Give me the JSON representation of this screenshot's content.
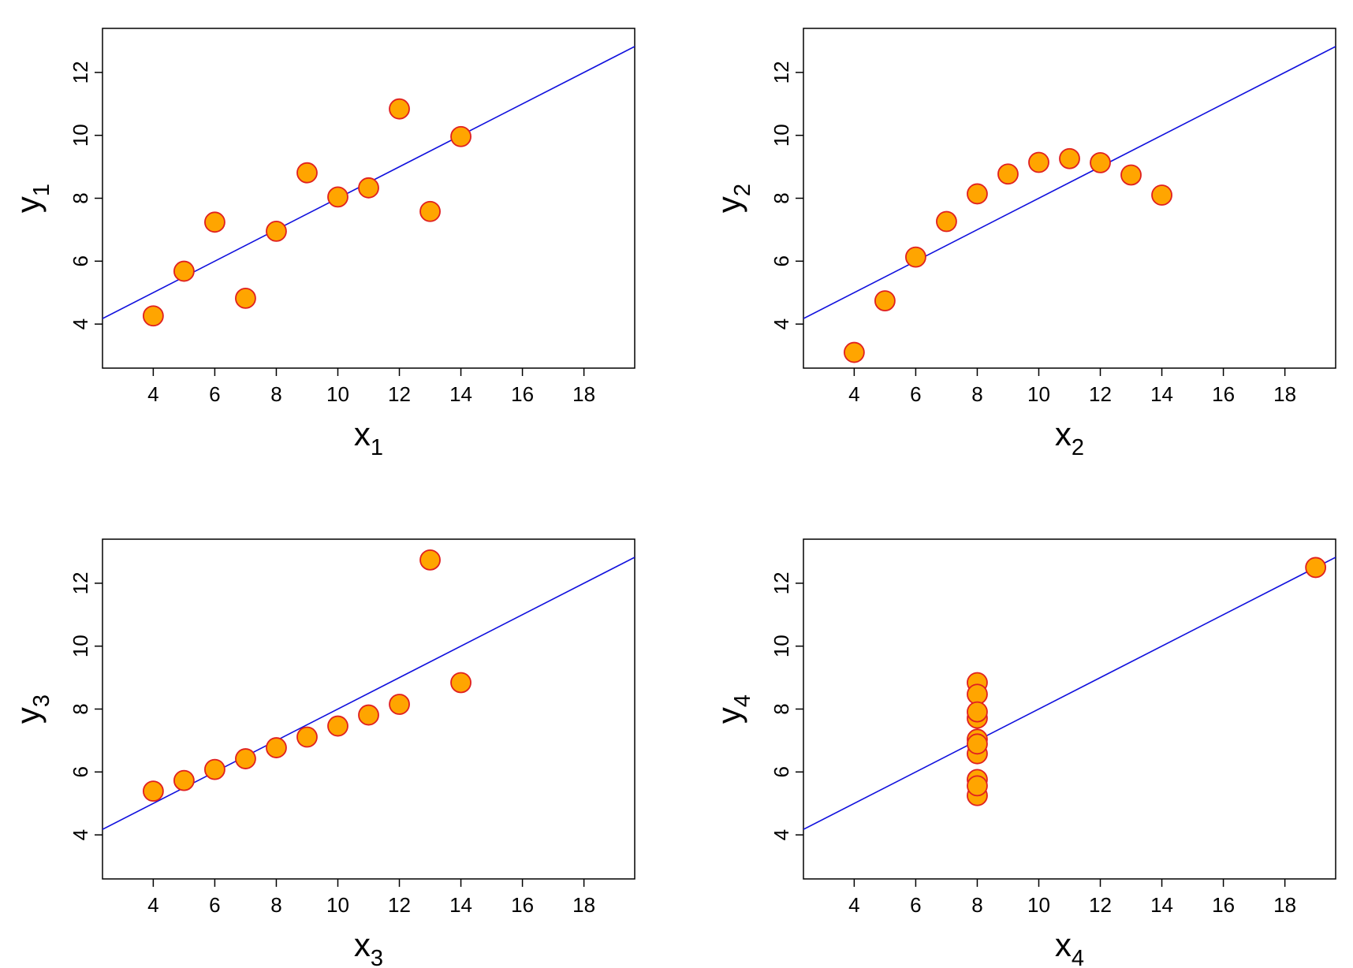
{
  "colors": {
    "point_fill": "#FFA500",
    "point_stroke": "#E02020",
    "fit_line": "#1010DD",
    "axis": "#000000"
  },
  "chart_data": [
    {
      "type": "scatter",
      "title": "",
      "xlabel": "x",
      "xlabel_sub": "1",
      "ylabel": "y",
      "ylabel_sub": "1",
      "xlim": [
        2.35,
        19.65
      ],
      "ylim": [
        2.6,
        13.4
      ],
      "xticks": [
        4,
        6,
        8,
        10,
        12,
        14,
        16,
        18
      ],
      "yticks": [
        4,
        6,
        8,
        10,
        12
      ],
      "grid": false,
      "x": [
        10,
        8,
        13,
        9,
        11,
        14,
        6,
        4,
        12,
        7,
        5
      ],
      "y": [
        8.04,
        6.95,
        7.58,
        8.81,
        8.33,
        9.96,
        7.24,
        4.26,
        10.84,
        4.82,
        5.68
      ],
      "fit": {
        "intercept": 3.0,
        "slope": 0.5
      }
    },
    {
      "type": "scatter",
      "title": "",
      "xlabel": "x",
      "xlabel_sub": "2",
      "ylabel": "y",
      "ylabel_sub": "2",
      "xlim": [
        2.35,
        19.65
      ],
      "ylim": [
        2.6,
        13.4
      ],
      "xticks": [
        4,
        6,
        8,
        10,
        12,
        14,
        16,
        18
      ],
      "yticks": [
        4,
        6,
        8,
        10,
        12
      ],
      "grid": false,
      "x": [
        10,
        8,
        13,
        9,
        11,
        14,
        6,
        4,
        12,
        7,
        5
      ],
      "y": [
        9.14,
        8.14,
        8.74,
        8.77,
        9.26,
        8.1,
        6.13,
        3.1,
        9.13,
        7.26,
        4.74
      ],
      "fit": {
        "intercept": 3.0,
        "slope": 0.5
      }
    },
    {
      "type": "scatter",
      "title": "",
      "xlabel": "x",
      "xlabel_sub": "3",
      "ylabel": "y",
      "ylabel_sub": "3",
      "xlim": [
        2.35,
        19.65
      ],
      "ylim": [
        2.6,
        13.4
      ],
      "xticks": [
        4,
        6,
        8,
        10,
        12,
        14,
        16,
        18
      ],
      "yticks": [
        4,
        6,
        8,
        10,
        12
      ],
      "grid": false,
      "x": [
        10,
        8,
        13,
        9,
        11,
        14,
        6,
        4,
        12,
        7,
        5
      ],
      "y": [
        7.46,
        6.77,
        12.74,
        7.11,
        7.81,
        8.84,
        6.08,
        5.39,
        8.15,
        6.42,
        5.73
      ],
      "fit": {
        "intercept": 3.0,
        "slope": 0.5
      }
    },
    {
      "type": "scatter",
      "title": "",
      "xlabel": "x",
      "xlabel_sub": "4",
      "ylabel": "y",
      "ylabel_sub": "4",
      "xlim": [
        2.35,
        19.65
      ],
      "ylim": [
        2.6,
        13.4
      ],
      "xticks": [
        4,
        6,
        8,
        10,
        12,
        14,
        16,
        18
      ],
      "yticks": [
        4,
        6,
        8,
        10,
        12
      ],
      "grid": false,
      "x": [
        8,
        8,
        8,
        8,
        8,
        8,
        8,
        19,
        8,
        8,
        8
      ],
      "y": [
        6.58,
        5.76,
        7.71,
        8.84,
        8.47,
        7.04,
        5.25,
        12.5,
        5.56,
        7.91,
        6.89
      ],
      "fit": {
        "intercept": 3.0,
        "slope": 0.5
      }
    }
  ]
}
